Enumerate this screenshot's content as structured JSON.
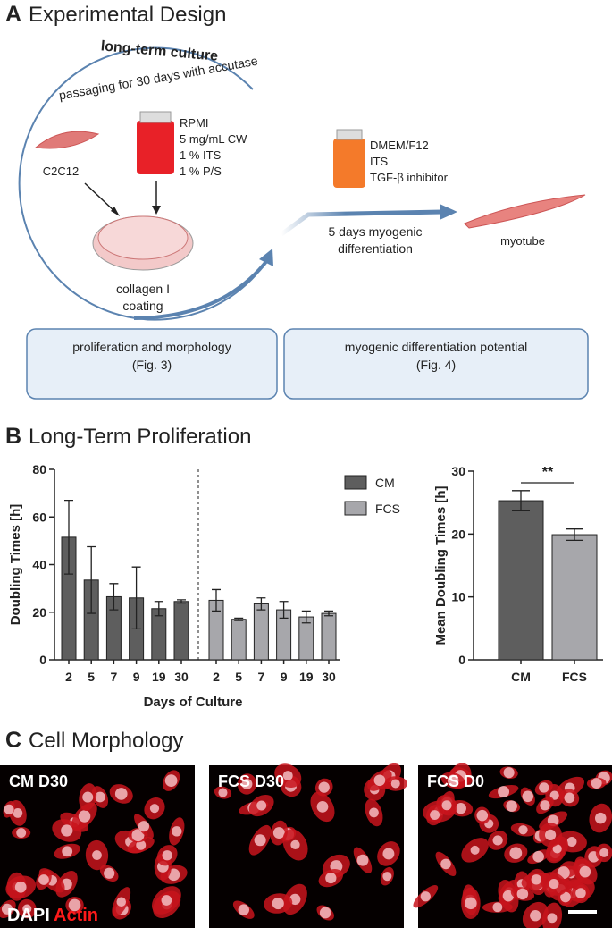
{
  "panel_a": {
    "letter": "A",
    "title": "Experimental Design",
    "culture_title": "long-term culture",
    "culture_subtitle": "passaging for 30 days with accutase",
    "cell": "C2C12",
    "medium_cm": [
      "RPMI",
      "5 mg/mL CW",
      "1 % ITS",
      "1 % P/S"
    ],
    "coating": [
      "collagen I",
      "coating"
    ],
    "medium_diff": [
      "DMEM/F12",
      "ITS",
      "TGF-β inhibitor"
    ],
    "differentiation": [
      "5 days myogenic",
      "differentiation"
    ],
    "product": "myotube",
    "boxes": [
      {
        "title": "proliferation and morphology",
        "ref": "(Fig. 3)"
      },
      {
        "title": "myogenic differentiation potential",
        "ref": "(Fig. 4)"
      }
    ]
  },
  "panel_b": {
    "letter": "B",
    "title": "Long-Term Proliferation"
  },
  "chart_data": [
    {
      "type": "bar",
      "x_label": "Days of Culture",
      "y_label": "Doubling Times [h]",
      "categories": [
        "2",
        "5",
        "7",
        "9",
        "19",
        "30"
      ],
      "series": [
        {
          "name": "CM",
          "color": "#5e5e5e",
          "values": [
            51.5,
            33.5,
            26.5,
            26,
            21.5,
            24.5
          ],
          "errors": [
            15.5,
            14,
            5.5,
            13,
            3,
            0.7
          ]
        },
        {
          "name": "FCS",
          "color": "#a7a7ab",
          "values": [
            25,
            17,
            23.5,
            21,
            18,
            19.5
          ],
          "errors": [
            4.5,
            0.5,
            2.5,
            3.5,
            2.5,
            1
          ]
        }
      ],
      "ylim": [
        0,
        80
      ],
      "yticks": [
        0,
        20,
        40,
        60,
        80
      ],
      "legend": "right"
    },
    {
      "type": "bar",
      "y_label": "Mean Doubling Times [h]",
      "categories": [
        "CM",
        "FCS"
      ],
      "colors": [
        "#5e5e5e",
        "#a7a7ab"
      ],
      "values": [
        25.3,
        19.9
      ],
      "errors": [
        1.6,
        0.9
      ],
      "ylim": [
        0,
        30
      ],
      "yticks": [
        0,
        10,
        20,
        30
      ],
      "annotation": "**"
    }
  ],
  "panel_c": {
    "letter": "C",
    "title": "Cell Morphology",
    "images": [
      "CM D30",
      "FCS D30",
      "FCS D0"
    ],
    "stain": [
      "DAPI",
      "Actin"
    ]
  }
}
